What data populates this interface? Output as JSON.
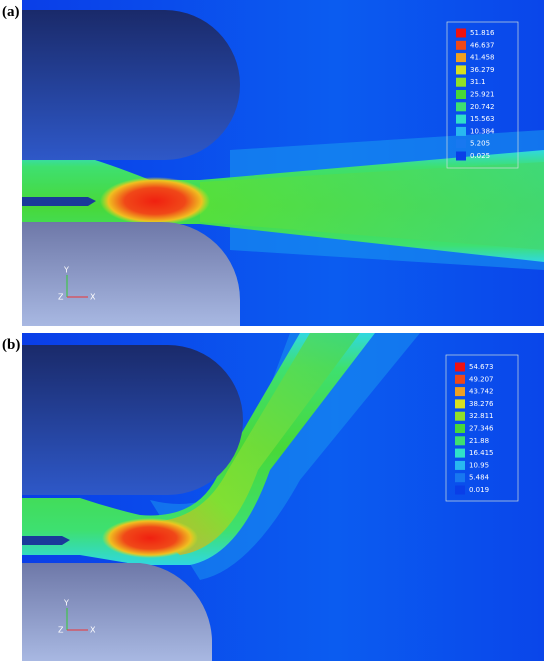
{
  "panels": [
    {
      "label": "(a)",
      "legend": [
        "51.816",
        "46.637",
        "41.458",
        "36.279",
        "31.1",
        "25.921",
        "20.742",
        "15.563",
        "10.384",
        "5.205",
        "0.025"
      ],
      "axes": {
        "y": "Y",
        "z": "Z",
        "x": "X"
      }
    },
    {
      "label": "(b)",
      "legend": [
        "54.673",
        "49.207",
        "43.742",
        "38.276",
        "32.811",
        "27.346",
        "21.88",
        "16.415",
        "10.95",
        "5.484",
        "0.019"
      ],
      "axes": {
        "y": "Y",
        "z": "Z",
        "x": "X"
      }
    }
  ]
}
